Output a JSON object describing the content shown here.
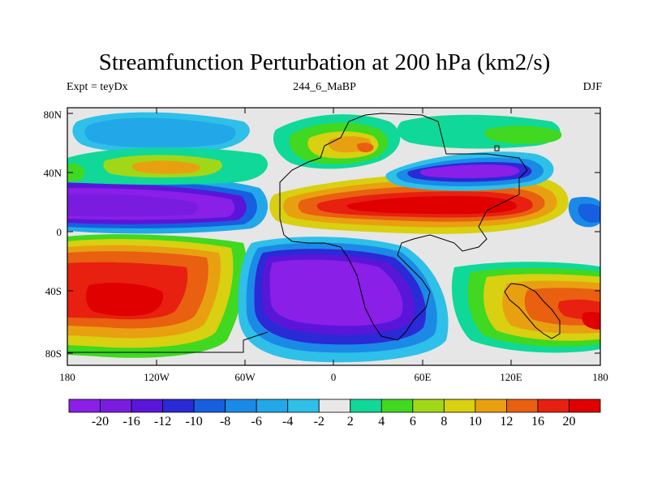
{
  "title": "Streamfunction Perturbation at 200 hPa (km2/s)",
  "subtitle_left": "Expt = teyDx",
  "subtitle_center": "244_6_MaBP",
  "subtitle_right": "DJF",
  "y_ticks": [
    "80N",
    "40N",
    "0",
    "40S",
    "80S"
  ],
  "x_ticks": [
    "180",
    "120W",
    "60W",
    "0",
    "60E",
    "120E",
    "180"
  ],
  "colorbar": {
    "labels": [
      "-20",
      "-16",
      "-12",
      "-10",
      "-8",
      "-6",
      "-4",
      "-2",
      "2",
      "4",
      "6",
      "8",
      "10",
      "12",
      "16",
      "20"
    ],
    "colors": [
      "#8a1fe8",
      "#7a1ce0",
      "#5a16d8",
      "#2a2ad6",
      "#1660e0",
      "#1a8ae6",
      "#22a8e8",
      "#2ec0e8",
      "#e8e8e8",
      "#10d898",
      "#40d820",
      "#a0d818",
      "#d8d010",
      "#e8a010",
      "#e86010",
      "#e82010",
      "#e00000"
    ]
  },
  "map_data": {
    "type": "contour-map",
    "projection": "cylindrical-equidistant",
    "xlim": [
      -180,
      180
    ],
    "ylim": [
      -90,
      90
    ],
    "colormap_levels": [
      -20,
      -16,
      -12,
      -10,
      -8,
      -6,
      -4,
      -2,
      2,
      4,
      6,
      8,
      10,
      12,
      16,
      20
    ],
    "features": [
      {
        "name": "northern-subtropical-negative-180W-120W",
        "lon": -150,
        "lat": 18,
        "value": -21
      },
      {
        "name": "northern-subtropical-positive-africa-asia",
        "lon": 75,
        "lat": 18,
        "value": 21
      },
      {
        "name": "asia-negative-40N",
        "lon": 95,
        "lat": 45,
        "value": -14
      },
      {
        "name": "southern-positive-pacific",
        "lon": -150,
        "lat": -40,
        "value": 18
      },
      {
        "name": "southern-negative-atlantic",
        "lon": -10,
        "lat": -45,
        "value": -21
      },
      {
        "name": "southern-positive-australia",
        "lon": 165,
        "lat": -45,
        "value": 16
      },
      {
        "name": "northern-positive-america",
        "lon": -100,
        "lat": 50,
        "value": 8
      },
      {
        "name": "northern-positive-europe",
        "lon": 20,
        "lat": 55,
        "value": 10
      }
    ]
  }
}
